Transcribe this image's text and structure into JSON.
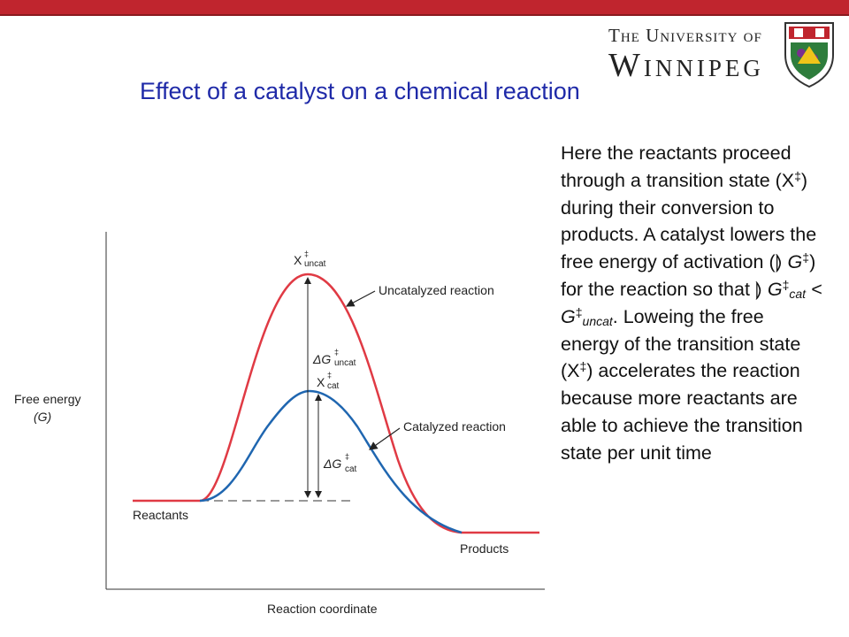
{
  "title": "Effect of a catalyst on a chemical reaction",
  "logo": {
    "line1": "The University of",
    "line2": "Winnipeg"
  },
  "body": {
    "p1": "Here the reactants proceed through a transition state (X",
    "dagger": "‡",
    "p2": ") during their conversion to products. A catalyst lowers the free energy of activation (",
    "glyph1": "⟭",
    "G": " G",
    "p3": ") for the reaction so that ",
    "glyph2": "⟭",
    "G2": "G",
    "cat": "cat",
    "lt": " < G",
    "uncat": "uncat",
    "p4": ". Loweing the  free energy of the transition state (X",
    "p5": ") accelerates the reaction because more reactants are able to achieve the transition state per unit time"
  },
  "diagram": {
    "y_axis_label": "Free energy",
    "y_axis_symbol": "(G)",
    "x_axis_label": "Reaction coordinate",
    "reactants": "Reactants",
    "products": "Products",
    "uncat_curve_label": "Uncatalyzed reaction",
    "cat_curve_label": "Catalyzed reaction",
    "x_uncat": "X",
    "x_cat": "X",
    "uncat_sub": "uncat",
    "cat_sub": "cat",
    "delta_g": "ΔG",
    "dagger": "‡",
    "colors": {
      "uncatalyzed": "#e03a44",
      "catalyzed": "#1f66b0"
    }
  }
}
